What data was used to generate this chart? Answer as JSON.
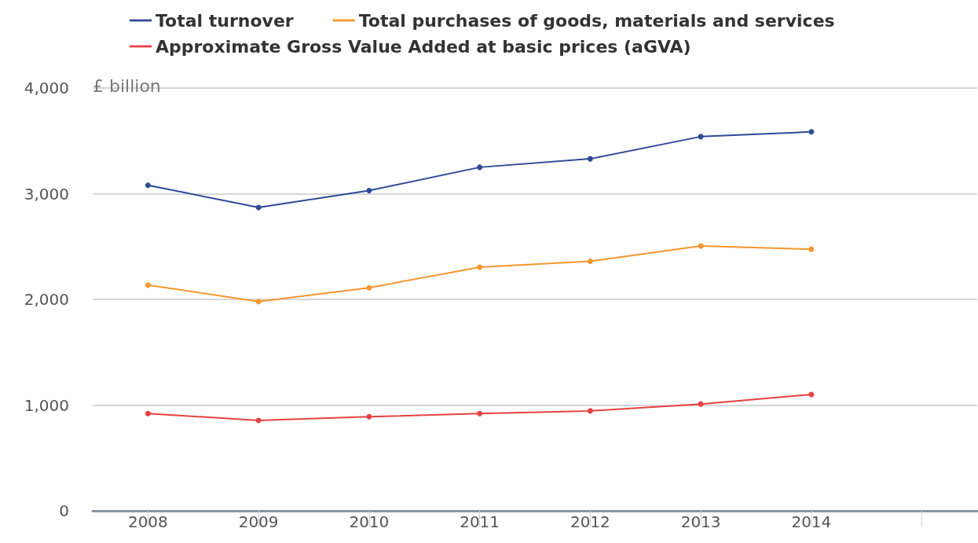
{
  "chart_data": {
    "type": "line",
    "ylabel": "£ billion",
    "categories": [
      "2008",
      "2009",
      "2010",
      "2011",
      "2012",
      "2013",
      "2014",
      null
    ],
    "series": [
      {
        "name": "Total turnover",
        "color": "#2e4a9a",
        "values": [
          3080,
          2870,
          3030,
          3250,
          3330,
          3540,
          3585,
          null
        ]
      },
      {
        "name": "Total purchases of goods, materials and services",
        "color": "#f7962e",
        "values": [
          2135,
          1980,
          2110,
          2305,
          2360,
          2505,
          2475,
          null
        ]
      },
      {
        "name": "Approximate Gross Value Added at basic prices (aGVA)",
        "color": "#e84142",
        "values": [
          920,
          855,
          890,
          920,
          945,
          1010,
          1100,
          null
        ]
      }
    ],
    "ylim": [
      0,
      4000
    ],
    "yticks": [
      0,
      {
        "value": 1000,
        "label": "1,000"
      },
      {
        "value": 2000,
        "label": "2,000"
      },
      {
        "value": 3000,
        "label": "3,000"
      },
      {
        "value": 4000,
        "label": "4,000"
      }
    ],
    "grid": "y",
    "legend": "top",
    "marker": "circle",
    "line_style": "solid"
  }
}
